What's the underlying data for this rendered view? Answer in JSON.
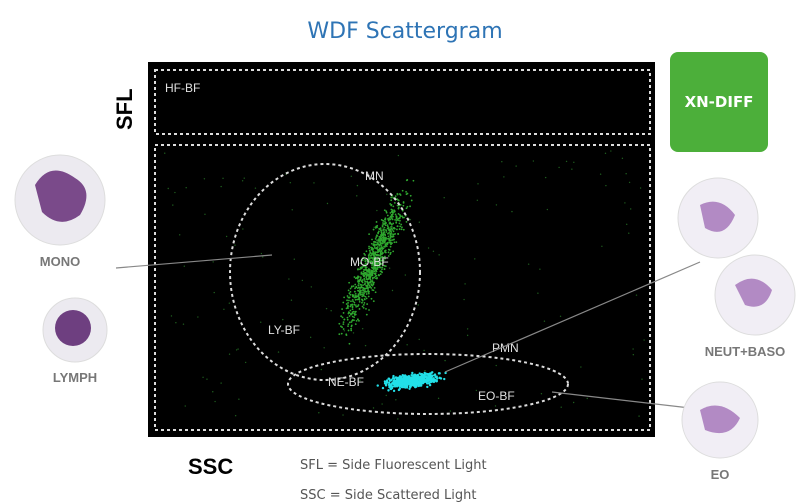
{
  "title": "WDF Scattergram",
  "axes": {
    "y": "SFL",
    "x": "SSC"
  },
  "regions": [
    "HF-BF",
    "MN",
    "MO-BF",
    "LY-BF",
    "PMN",
    "NE-BF",
    "EO-BF"
  ],
  "badge": "XN-DIFF",
  "cells": [
    "MONO",
    "LYMPH",
    "NEUT+BASO",
    "EO"
  ],
  "legend": [
    "SFL = Side Fluorescent Light",
    "SSC = Side Scattered Light"
  ]
}
